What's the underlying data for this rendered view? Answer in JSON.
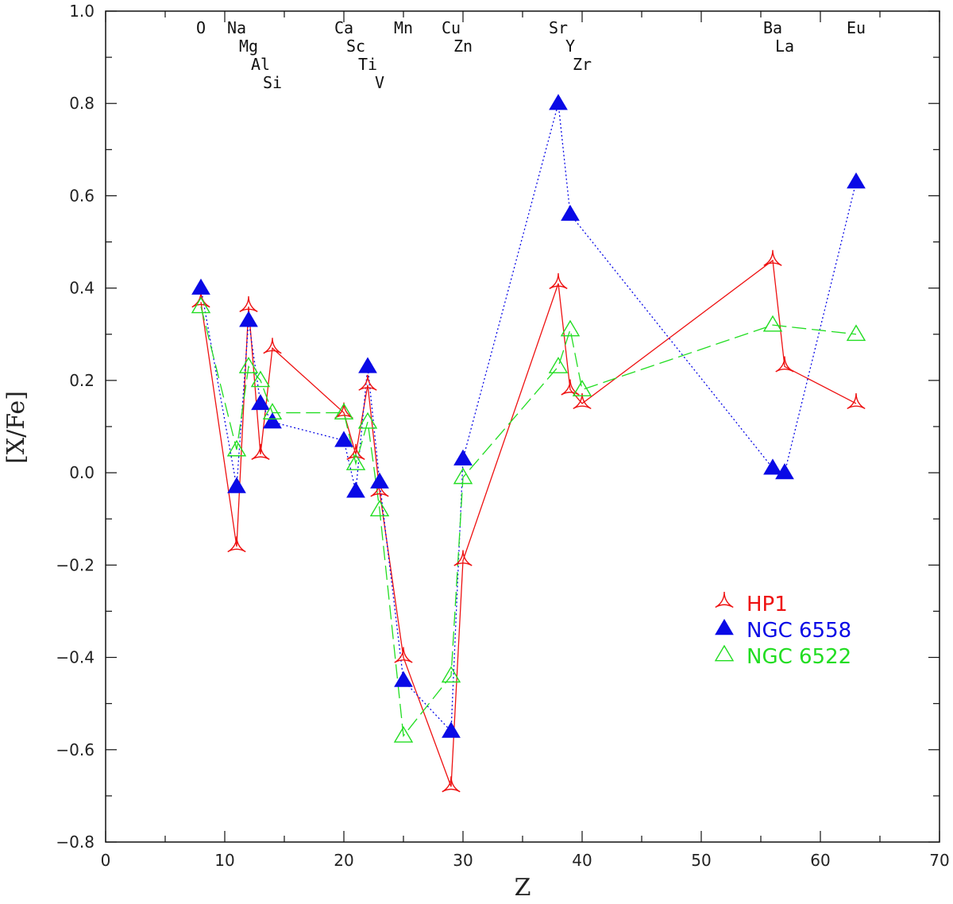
{
  "chart_data": {
    "type": "line",
    "xlabel": "Z",
    "ylabel": "[X/Fe]",
    "xlim": [
      0,
      70
    ],
    "ylim": [
      -0.8,
      1.0
    ],
    "x_major_ticks": [
      0,
      10,
      20,
      30,
      40,
      50,
      60,
      70
    ],
    "x_minor_step": 5,
    "y_major_ticks": [
      -0.8,
      -0.6,
      -0.4,
      -0.2,
      0.0,
      0.2,
      0.4,
      0.6,
      0.8,
      1.0
    ],
    "y_minor_step": 0.1,
    "x_tick_labels": [
      "0",
      "10",
      "20",
      "30",
      "40",
      "50",
      "60",
      "70"
    ],
    "y_tick_labels": [
      "−0.8",
      "−0.6",
      "−0.4",
      "−0.2",
      "0.0",
      "0.2",
      "0.4",
      "0.6",
      "0.8",
      "1.0"
    ],
    "grid": false,
    "legend_position": "bottom-right",
    "element_labels": [
      {
        "text": "O",
        "z": 8,
        "row": 0
      },
      {
        "text": "Na",
        "z": 11,
        "row": 0
      },
      {
        "text": "Mg",
        "z": 12,
        "row": 1
      },
      {
        "text": "Al",
        "z": 13,
        "row": 2
      },
      {
        "text": "Si",
        "z": 14,
        "row": 3
      },
      {
        "text": "Ca",
        "z": 20,
        "row": 0
      },
      {
        "text": "Sc",
        "z": 21,
        "row": 1
      },
      {
        "text": "Ti",
        "z": 22,
        "row": 2
      },
      {
        "text": "V",
        "z": 23,
        "row": 3
      },
      {
        "text": "Mn",
        "z": 25,
        "row": 0
      },
      {
        "text": "Cu",
        "z": 29,
        "row": 0
      },
      {
        "text": "Zn",
        "z": 30,
        "row": 1
      },
      {
        "text": "Sr",
        "z": 38,
        "row": 0
      },
      {
        "text": "Y",
        "z": 39,
        "row": 1
      },
      {
        "text": "Zr",
        "z": 40,
        "row": 2
      },
      {
        "text": "Ba",
        "z": 56,
        "row": 0
      },
      {
        "text": "La",
        "z": 57,
        "row": 1
      },
      {
        "text": "Eu",
        "z": 63,
        "row": 0
      }
    ],
    "series": [
      {
        "name": "HP1",
        "color": "#ee1111",
        "marker": "skeletal-triangle",
        "line_style": "solid",
        "x": [
          8,
          11,
          12,
          13,
          14,
          20,
          21,
          22,
          23,
          25,
          29,
          30,
          38,
          39,
          40,
          56,
          57,
          63
        ],
        "y": [
          0.37,
          -0.16,
          0.36,
          0.04,
          0.27,
          0.13,
          0.04,
          0.19,
          -0.04,
          -0.4,
          -0.68,
          -0.19,
          0.41,
          0.18,
          0.15,
          0.46,
          0.23,
          0.15
        ]
      },
      {
        "name": "NGC 6558",
        "color": "#0a0ae6",
        "marker": "filled-triangle",
        "line_style": "dotted",
        "x": [
          8,
          11,
          12,
          13,
          14,
          20,
          21,
          22,
          23,
          25,
          29,
          30,
          38,
          39,
          56,
          57,
          63
        ],
        "y": [
          0.4,
          -0.03,
          0.33,
          0.15,
          0.11,
          0.07,
          -0.04,
          0.23,
          -0.02,
          -0.45,
          -0.56,
          0.03,
          0.8,
          0.56,
          0.01,
          0.0,
          0.63
        ]
      },
      {
        "name": "NGC 6522",
        "color": "#22dd22",
        "marker": "open-triangle",
        "line_style": "dashed",
        "x": [
          8,
          11,
          12,
          13,
          14,
          20,
          21,
          22,
          23,
          25,
          29,
          30,
          38,
          39,
          40,
          56,
          63
        ],
        "y": [
          0.36,
          0.05,
          0.23,
          0.2,
          0.13,
          0.13,
          0.02,
          0.11,
          -0.08,
          -0.57,
          -0.44,
          -0.01,
          0.23,
          0.31,
          0.18,
          0.32,
          0.3
        ]
      }
    ]
  }
}
